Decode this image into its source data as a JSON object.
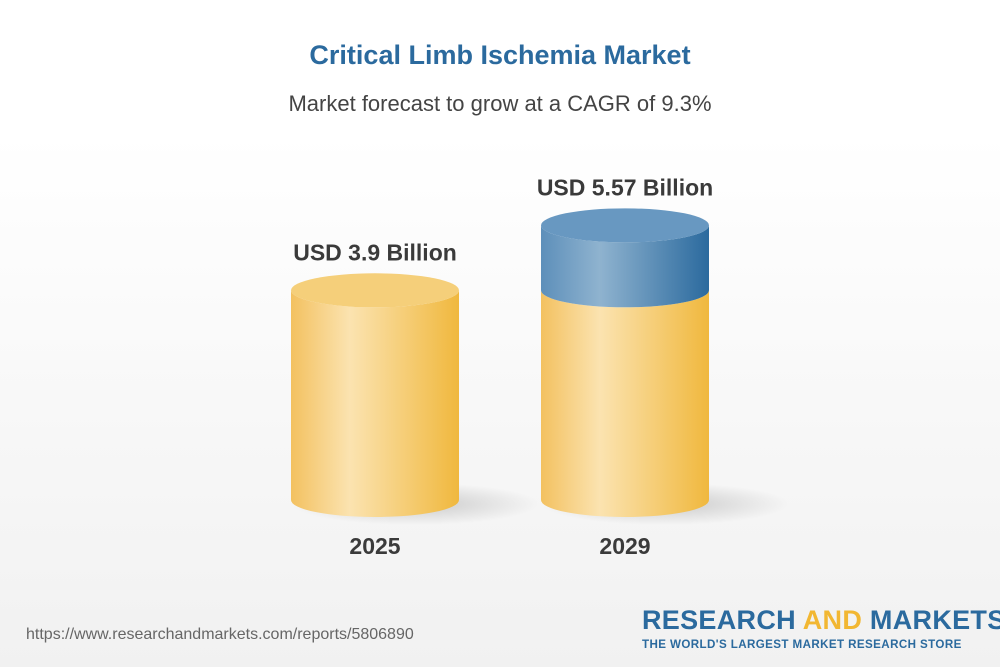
{
  "chart_data": {
    "type": "bar",
    "style": "3d-cylinder",
    "title": "Critical Limb Ischemia Market",
    "subtitle": "Market forecast to grow at a CAGR of 9.3%",
    "categories": [
      "2025",
      "2029"
    ],
    "values": [
      3.9,
      5.57
    ],
    "data_labels": [
      "USD 3.9 Billion",
      "USD 5.57 Billion"
    ],
    "unit": "USD Billion",
    "colors": {
      "base": "#f2c25c",
      "growth": "#3f7fb0",
      "title": "#2b6a9e"
    },
    "grid": false
  },
  "footer": {
    "url": "https://www.researchandmarkets.com/reports/5806890",
    "logo_part1": "RESEARCH ",
    "logo_part2": "AND",
    "logo_part3": " MARKETS",
    "logo_tagline": "THE WORLD'S LARGEST MARKET RESEARCH STORE"
  }
}
